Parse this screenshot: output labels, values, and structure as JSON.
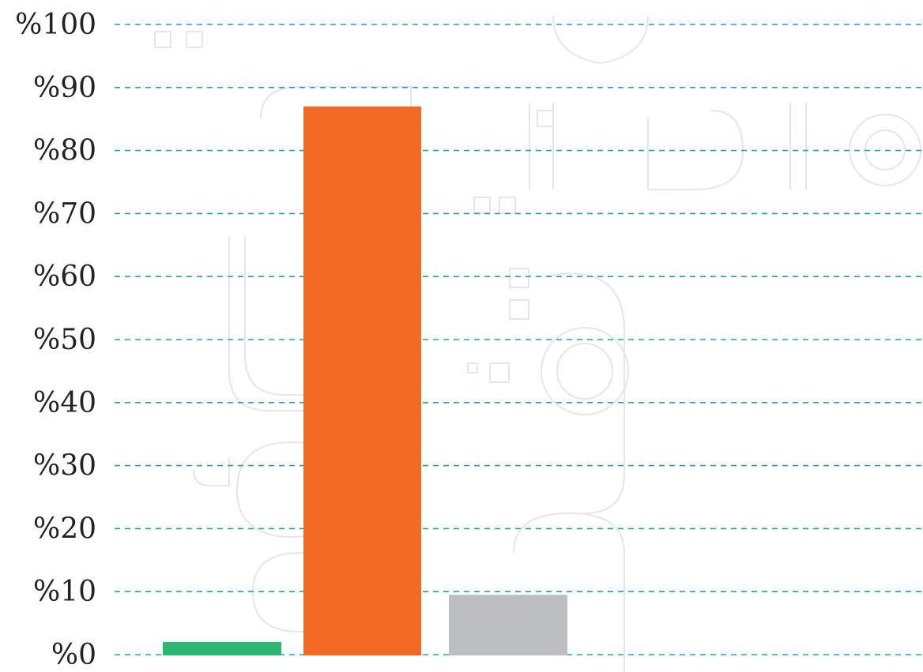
{
  "chart_data": {
    "type": "bar",
    "categories": [
      "",
      "",
      ""
    ],
    "values": [
      2,
      87,
      9.5
    ],
    "colors": [
      "#2bb673",
      "#f26a24",
      "#bcbec0"
    ],
    "ylim": [
      0,
      100
    ],
    "yticks": [
      0,
      10,
      20,
      30,
      40,
      50,
      60,
      70,
      80,
      90,
      100
    ],
    "ytick_labels": [
      "%0",
      "%10",
      "%20",
      "%30",
      "%40",
      "%50",
      "%60",
      "%70",
      "%80",
      "%90",
      "%100"
    ],
    "grid": true,
    "grid_style": "dashed",
    "grid_color": "#1fa89a",
    "title": "",
    "xlabel": "",
    "ylabel": ""
  }
}
